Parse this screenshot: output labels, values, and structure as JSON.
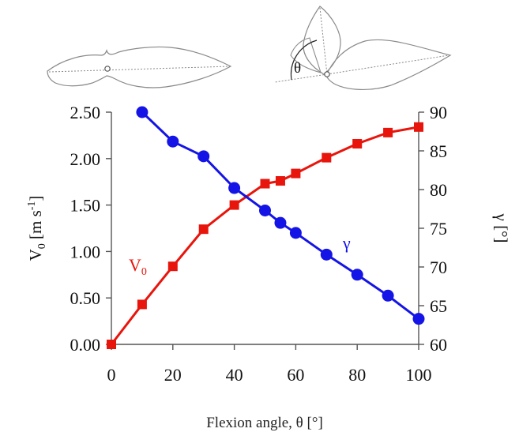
{
  "chart_data": {
    "type": "line",
    "xlabel": "Flexion angle, θ [°]",
    "ylabel_left": {
      "main": "V",
      "sub": "0",
      "rest": " [m s",
      "sup": "-1",
      "end": "]"
    },
    "ylabel_right": "γ [°]",
    "xlim": [
      0,
      100
    ],
    "ylim_left": [
      0,
      2.5
    ],
    "ylim_right": [
      60,
      90
    ],
    "xticks": [
      "0",
      "20",
      "40",
      "60",
      "80",
      "100"
    ],
    "yticks_left": [
      "0.00",
      "0.50",
      "1.00",
      "1.50",
      "2.00",
      "2.50"
    ],
    "yticks_right": [
      "60",
      "65",
      "70",
      "75",
      "80",
      "85",
      "90"
    ],
    "series": [
      {
        "name_main": "V",
        "name_sub": "0",
        "axis": "left",
        "color": "#e8150c",
        "marker": "square",
        "x": [
          0,
          10,
          20,
          30,
          40,
          50,
          55,
          60,
          70,
          80,
          90,
          100
        ],
        "y": [
          0.0,
          0.43,
          0.84,
          1.24,
          1.5,
          1.73,
          1.76,
          1.84,
          2.01,
          2.16,
          2.28,
          2.34
        ]
      },
      {
        "name": "γ",
        "axis": "right",
        "color": "#1414e6",
        "marker": "circle",
        "x": [
          10,
          20,
          30,
          40,
          50,
          55,
          60,
          70,
          80,
          90,
          100
        ],
        "y": [
          90.0,
          86.2,
          84.3,
          80.2,
          77.3,
          75.7,
          74.4,
          71.6,
          69.0,
          66.3,
          63.3
        ]
      }
    ],
    "diagram_label": "θ",
    "colors": {
      "axis": "#555555",
      "outline": "#8a8a8a"
    }
  }
}
